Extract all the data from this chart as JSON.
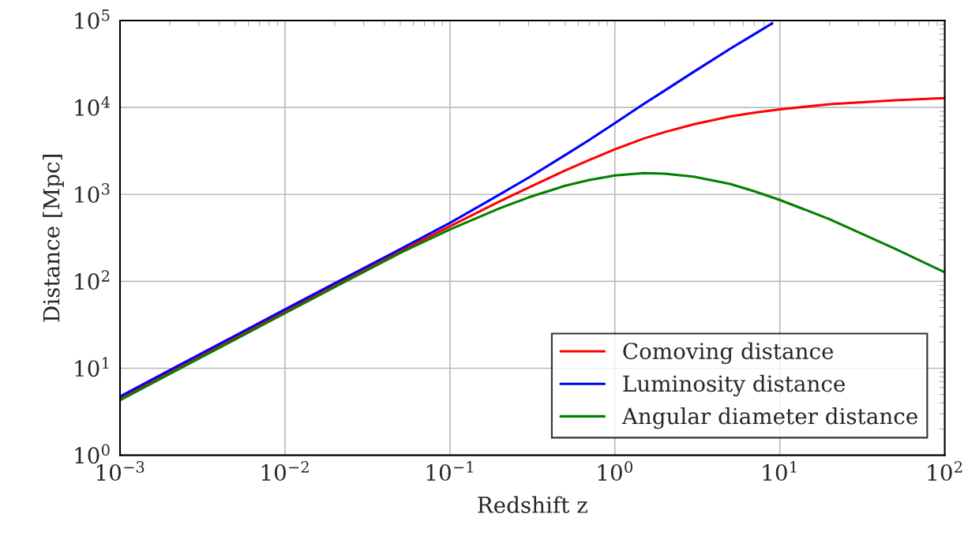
{
  "chart_data": {
    "type": "line",
    "xlabel": "Redshift z",
    "ylabel": "Distance [Mpc]",
    "log": "xy",
    "grid": true,
    "legend": "bottom right",
    "line_style": "solid",
    "marker": "none",
    "xlim": [
      0.001,
      100
    ],
    "ylim": [
      1,
      100000
    ],
    "xticks": [
      {
        "value": 0.001,
        "label": "10$^{−3}$"
      },
      {
        "value": 0.01,
        "label": "10$^{−2}$"
      },
      {
        "value": 0.1,
        "label": "10$^{−1}$"
      },
      {
        "value": 1,
        "label": "10$^{0}$"
      },
      {
        "value": 10,
        "label": "10$^{1}$"
      },
      {
        "value": 100,
        "label": "10$^{2}$"
      }
    ],
    "yticks": [
      {
        "value": 1,
        "label": "10$^{0}$"
      },
      {
        "value": 10,
        "label": "10$^{1}$"
      },
      {
        "value": 100,
        "label": "10$^{2}$"
      },
      {
        "value": 1000,
        "label": "10$^{3}$"
      },
      {
        "value": 10000,
        "label": "10$^{4}$"
      },
      {
        "value": 100000,
        "label": "10$^{5}$"
      }
    ],
    "x": [
      0.001,
      0.002,
      0.005,
      0.01,
      0.02,
      0.05,
      0.1,
      0.2,
      0.3,
      0.5,
      0.7,
      1,
      1.5,
      2,
      3,
      5,
      7,
      10,
      20,
      50,
      100
    ],
    "series": [
      {
        "name": "Comoving distance",
        "color": "#ff0000",
        "values": [
          4.5,
          9,
          22.5,
          45,
          90,
          222,
          430,
          830,
          1200,
          1890,
          2490,
          3300,
          4400,
          5200,
          6400,
          7900,
          8700,
          9500,
          10900,
          12100,
          12800
        ]
      },
      {
        "name": "Luminosity distance",
        "color": "#0000ff",
        "x": [
          0.001,
          0.002,
          0.005,
          0.01,
          0.02,
          0.05,
          0.1,
          0.2,
          0.3,
          0.5,
          0.7,
          1,
          1.5,
          2,
          3,
          5,
          7,
          9
        ],
        "values": [
          4.75,
          9.5,
          23.8,
          47.5,
          95,
          235,
          470,
          996,
          1560,
          2835,
          4233,
          6600,
          11000,
          15600,
          25600,
          47400,
          69600,
          93000
        ]
      },
      {
        "name": "Angular diameter distance",
        "color": "#008000",
        "values": [
          4.3,
          8.6,
          21.5,
          43,
          86,
          212,
          395,
          692,
          923,
          1260,
          1465,
          1650,
          1760,
          1733,
          1600,
          1317,
          1088,
          864,
          519,
          237,
          127
        ]
      }
    ]
  }
}
